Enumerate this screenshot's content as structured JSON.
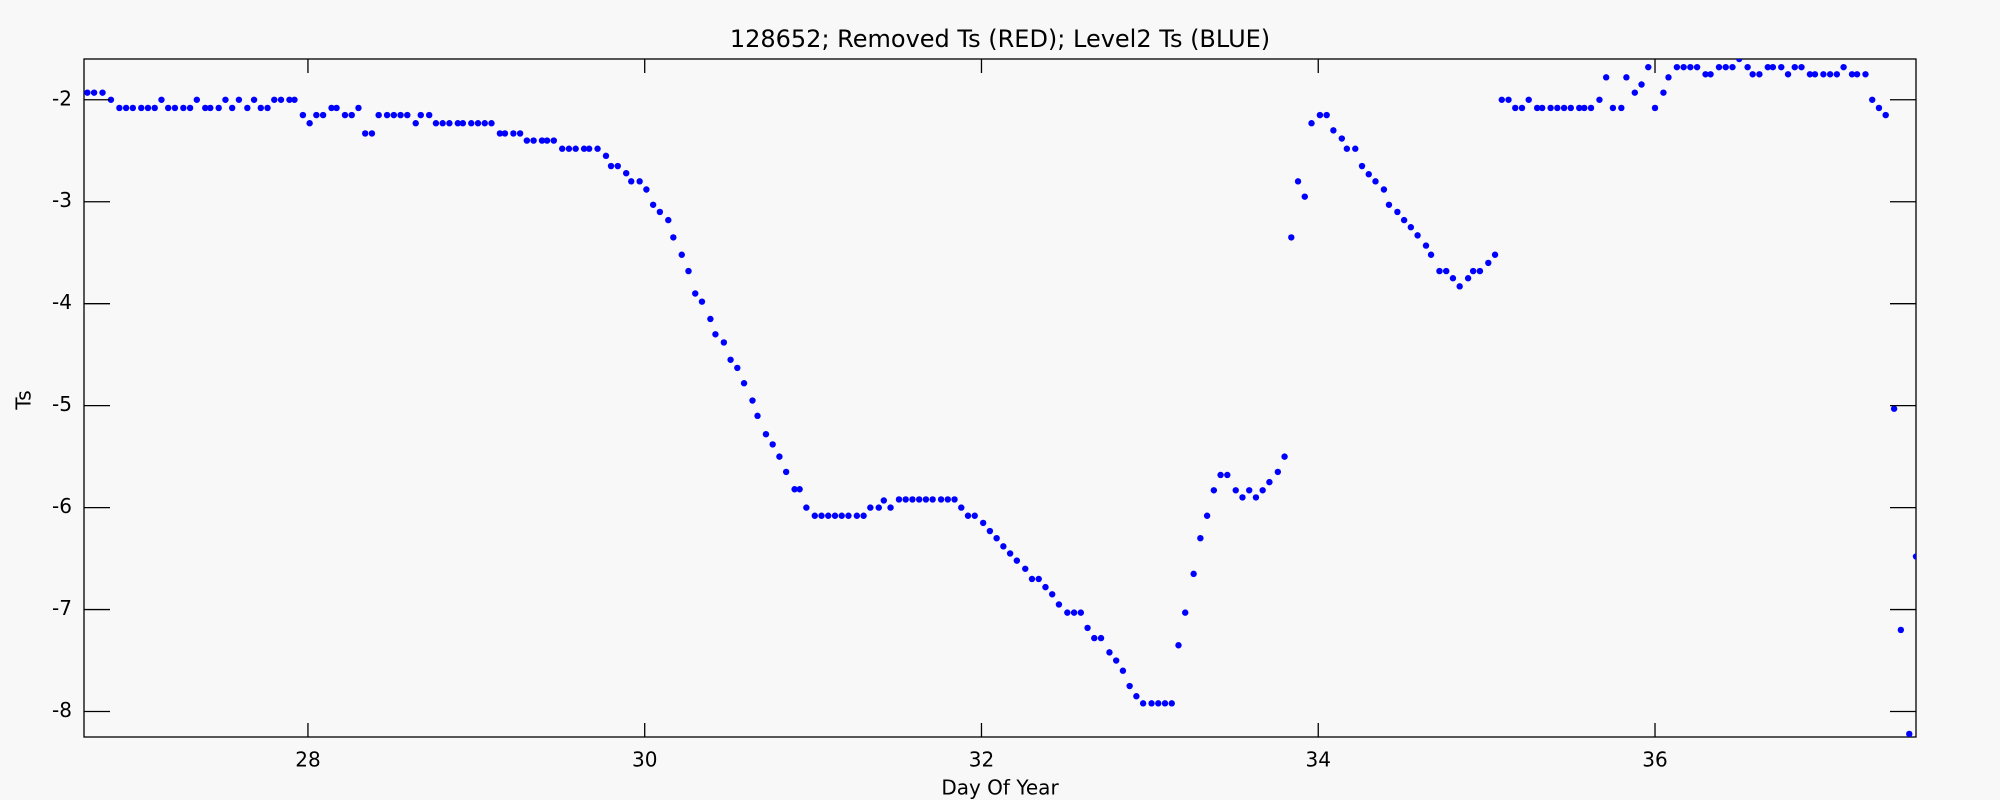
{
  "chart_data": {
    "type": "scatter",
    "title": "128652; Removed Ts (RED); Level2 Ts (BLUE)",
    "x_label": "Day Of Year",
    "y_label": "Ts",
    "color": "#0000ff",
    "xlim": [
      26.67,
      37.55
    ],
    "ylim": [
      -8.25,
      -1.6
    ],
    "xticks": [
      28,
      30,
      32,
      34,
      36
    ],
    "yticks": [
      -8,
      -7,
      -6,
      -5,
      -4,
      -3,
      -2
    ],
    "x": [
      26.69,
      26.73,
      26.78,
      26.83,
      26.88,
      26.92,
      26.96,
      27.01,
      27.05,
      27.09,
      27.13,
      27.17,
      27.21,
      27.26,
      27.3,
      27.34,
      27.39,
      27.42,
      27.47,
      27.51,
      27.55,
      27.59,
      27.64,
      27.68,
      27.72,
      27.76,
      27.8,
      27.84,
      27.89,
      27.92,
      27.97,
      28.01,
      28.05,
      28.09,
      28.14,
      28.17,
      28.22,
      28.26,
      28.3,
      28.34,
      28.38,
      28.42,
      28.47,
      28.51,
      28.55,
      28.59,
      28.64,
      28.67,
      28.72,
      28.76,
      28.8,
      28.84,
      28.89,
      28.92,
      28.97,
      29.01,
      29.05,
      29.09,
      29.14,
      29.17,
      29.22,
      29.26,
      29.3,
      29.34,
      29.39,
      29.42,
      29.46,
      29.51,
      29.55,
      29.59,
      29.64,
      29.67,
      29.72,
      29.77,
      29.8,
      29.84,
      29.89,
      29.92,
      29.97,
      30.01,
      30.05,
      30.09,
      30.14,
      30.17,
      30.22,
      30.26,
      30.3,
      30.34,
      30.39,
      30.42,
      30.47,
      30.51,
      30.55,
      30.59,
      30.64,
      30.67,
      30.72,
      30.76,
      30.8,
      30.84,
      30.89,
      30.92,
      30.96,
      31.01,
      31.05,
      31.09,
      31.13,
      31.17,
      31.21,
      31.26,
      31.3,
      31.34,
      31.39,
      31.42,
      31.46,
      31.51,
      31.55,
      31.59,
      31.63,
      31.67,
      31.71,
      31.76,
      31.8,
      31.84,
      31.88,
      31.92,
      31.96,
      32.01,
      32.05,
      32.09,
      32.13,
      32.17,
      32.21,
      32.26,
      32.3,
      32.34,
      32.38,
      32.42,
      32.46,
      32.51,
      32.55,
      32.59,
      32.63,
      32.67,
      32.71,
      32.76,
      32.8,
      32.84,
      32.88,
      32.92,
      32.96,
      33.01,
      33.05,
      33.09,
      33.13,
      33.17,
      33.21,
      33.26,
      33.3,
      33.34,
      33.38,
      33.42,
      33.46,
      33.51,
      33.55,
      33.59,
      33.63,
      33.67,
      33.71,
      33.76,
      33.8,
      33.84,
      33.88,
      33.92,
      33.96,
      34.01,
      34.05,
      34.09,
      34.14,
      34.17,
      34.22,
      34.26,
      34.3,
      34.34,
      34.39,
      34.42,
      34.47,
      34.51,
      34.55,
      34.59,
      34.64,
      34.67,
      34.72,
      34.76,
      34.8,
      34.84,
      34.89,
      34.92,
      34.96,
      35.01,
      35.05,
      35.09,
      35.13,
      35.17,
      35.21,
      35.25,
      35.3,
      35.33,
      35.38,
      35.42,
      35.46,
      35.5,
      35.55,
      35.58,
      35.62,
      35.67,
      35.71,
      35.75,
      35.8,
      35.83,
      35.88,
      35.92,
      35.96,
      36.0,
      36.05,
      36.08,
      36.13,
      36.17,
      36.21,
      36.25,
      36.3,
      36.33,
      36.38,
      36.42,
      36.46,
      36.5,
      36.55,
      36.58,
      36.62,
      36.67,
      36.7,
      36.75,
      36.79,
      36.83,
      36.87,
      36.92,
      36.95,
      37.0,
      37.04,
      37.08,
      37.12,
      37.17,
      37.2,
      37.25,
      37.29,
      37.33,
      37.37,
      37.42,
      37.46,
      37.51,
      37.55
    ],
    "values": [
      -1.93,
      -1.93,
      -1.93,
      -2.0,
      -2.08,
      -2.08,
      -2.08,
      -2.08,
      -2.08,
      -2.08,
      -2.0,
      -2.08,
      -2.08,
      -2.08,
      -2.08,
      -2.0,
      -2.08,
      -2.08,
      -2.08,
      -2.0,
      -2.08,
      -2.0,
      -2.08,
      -2.0,
      -2.08,
      -2.08,
      -2.0,
      -2.0,
      -2.0,
      -2.0,
      -2.15,
      -2.23,
      -2.15,
      -2.15,
      -2.08,
      -2.08,
      -2.15,
      -2.15,
      -2.08,
      -2.33,
      -2.33,
      -2.15,
      -2.15,
      -2.15,
      -2.15,
      -2.15,
      -2.23,
      -2.15,
      -2.15,
      -2.23,
      -2.23,
      -2.23,
      -2.23,
      -2.23,
      -2.23,
      -2.23,
      -2.23,
      -2.23,
      -2.33,
      -2.33,
      -2.33,
      -2.33,
      -2.4,
      -2.4,
      -2.4,
      -2.4,
      -2.4,
      -2.48,
      -2.48,
      -2.48,
      -2.48,
      -2.48,
      -2.48,
      -2.55,
      -2.65,
      -2.65,
      -2.72,
      -2.8,
      -2.8,
      -2.88,
      -3.03,
      -3.1,
      -3.18,
      -3.35,
      -3.52,
      -3.68,
      -3.9,
      -3.98,
      -4.15,
      -4.3,
      -4.38,
      -4.55,
      -4.63,
      -4.78,
      -4.95,
      -5.1,
      -5.28,
      -5.38,
      -5.5,
      -5.65,
      -5.82,
      -5.82,
      -6.0,
      -6.08,
      -6.08,
      -6.08,
      -6.08,
      -6.08,
      -6.08,
      -6.08,
      -6.08,
      -6.0,
      -6.0,
      -5.93,
      -6.0,
      -5.92,
      -5.92,
      -5.92,
      -5.92,
      -5.92,
      -5.92,
      -5.92,
      -5.92,
      -5.92,
      -6.0,
      -6.08,
      -6.08,
      -6.15,
      -6.23,
      -6.3,
      -6.38,
      -6.45,
      -6.52,
      -6.6,
      -6.7,
      -6.7,
      -6.78,
      -6.85,
      -6.95,
      -7.03,
      -7.03,
      -7.03,
      -7.18,
      -7.28,
      -7.28,
      -7.42,
      -7.5,
      -7.6,
      -7.75,
      -7.85,
      -7.92,
      -7.92,
      -7.92,
      -7.92,
      -7.92,
      -7.35,
      -7.03,
      -6.65,
      -6.3,
      -6.08,
      -5.83,
      -5.68,
      -5.68,
      -5.83,
      -5.9,
      -5.83,
      -5.9,
      -5.83,
      -5.75,
      -5.65,
      -5.5,
      -3.35,
      -2.8,
      -2.95,
      -2.23,
      -2.15,
      -2.15,
      -2.3,
      -2.38,
      -2.48,
      -2.48,
      -2.65,
      -2.73,
      -2.8,
      -2.88,
      -3.03,
      -3.1,
      -3.18,
      -3.25,
      -3.33,
      -3.43,
      -3.52,
      -3.68,
      -3.68,
      -3.75,
      -3.83,
      -3.75,
      -3.68,
      -3.68,
      -3.6,
      -3.52,
      -2.0,
      -2.0,
      -2.08,
      -2.08,
      -2.0,
      -2.08,
      -2.08,
      -2.08,
      -2.08,
      -2.08,
      -2.08,
      -2.08,
      -2.08,
      -2.08,
      -2.0,
      -1.78,
      -2.08,
      -2.08,
      -1.78,
      -1.93,
      -1.85,
      -1.68,
      -2.08,
      -1.93,
      -1.78,
      -1.68,
      -1.68,
      -1.68,
      -1.68,
      -1.75,
      -1.75,
      -1.68,
      -1.68,
      -1.68,
      -1.6,
      -1.68,
      -1.75,
      -1.75,
      -1.68,
      -1.68,
      -1.68,
      -1.75,
      -1.68,
      -1.68,
      -1.75,
      -1.75,
      -1.75,
      -1.75,
      -1.75,
      -1.68,
      -1.75,
      -1.75,
      -1.75,
      -2.0,
      -2.08,
      -2.15,
      -5.03,
      -7.2,
      -8.22,
      -6.48
    ]
  }
}
